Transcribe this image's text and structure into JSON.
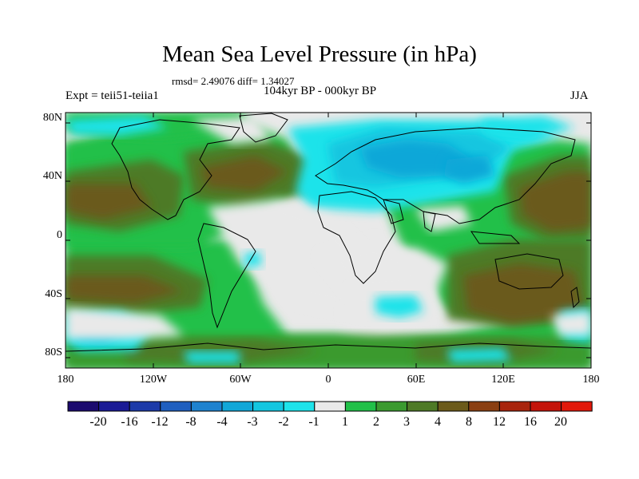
{
  "title": "Mean Sea Level Pressure (in hPa)",
  "stats": "rmsd= 2.49076 diff= 1.34027",
  "experiment": "Expt = teii51-teiia1",
  "period": "104kyr BP - 000kyr BP",
  "season": "JJA",
  "axes": {
    "lat_ticks": [
      "80N",
      "40N",
      "0",
      "40S",
      "80S"
    ],
    "lon_ticks": [
      "180",
      "120W",
      "60W",
      "0",
      "60E",
      "120E",
      "180"
    ]
  },
  "colorbar": {
    "labels": [
      "-20",
      "-16",
      "-12",
      "-8",
      "-4",
      "-3",
      "-2",
      "-1",
      "1",
      "2",
      "3",
      "4",
      "8",
      "12",
      "16",
      "20"
    ],
    "colors": [
      "#1b0a6e",
      "#1a1a95",
      "#1c3aa8",
      "#1f5fbf",
      "#1e82cf",
      "#11a7d8",
      "#14c6e0",
      "#1ee3ea",
      "#e9e9e9",
      "#21c048",
      "#3b9a2f",
      "#4e7a26",
      "#6b5a1a",
      "#8a3f12",
      "#a8240d",
      "#c4140a",
      "#e2180a"
    ]
  },
  "map_colors": {
    "neutral": "#e9e9e9",
    "low1": "#1ee3ea",
    "low2": "#14c6e0",
    "low3": "#11a7d8",
    "high1": "#21c048",
    "high2": "#3b9a2f",
    "high3": "#4e7a26",
    "high4": "#6b5a1a",
    "coast": "#000000"
  }
}
